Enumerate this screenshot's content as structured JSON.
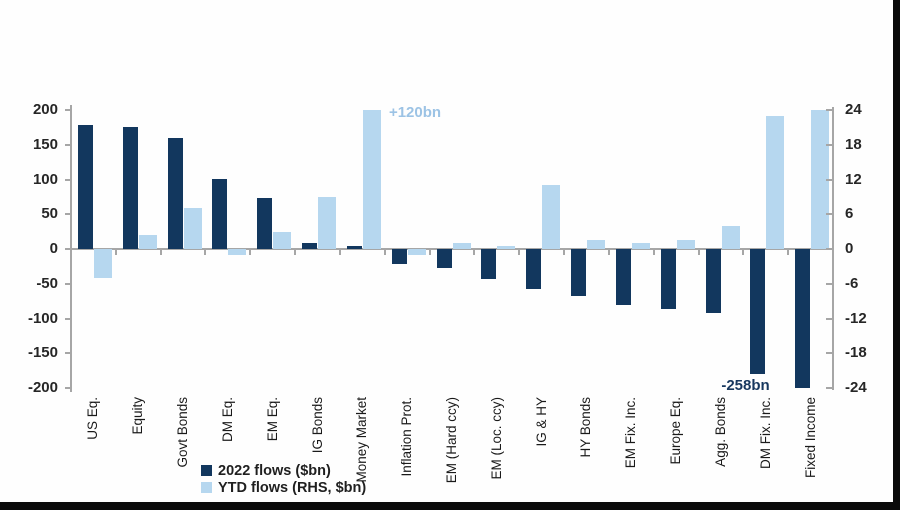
{
  "chart_data": {
    "type": "bar",
    "title": "",
    "categories": [
      "US Eq.",
      "Equity",
      "Govt Bonds",
      "DM Eq.",
      "EM Eq.",
      "IG Bonds",
      "Money Market",
      "Inflation Prot.",
      "EM (Hard ccy)",
      "EM (Loc. ccy)",
      "IG & HY",
      "HY Bonds",
      "EM Fix. Inc.",
      "Europe Eq.",
      "Agg. Bonds",
      "DM Fix. Inc.",
      "Fixed Income"
    ],
    "series": [
      {
        "name": "2022 flows ($bn)",
        "axis": "left",
        "color": "#12375e",
        "values": [
          178,
          176,
          160,
          101,
          73,
          8,
          5,
          -22,
          -28,
          -43,
          -58,
          -67,
          -81,
          -86,
          -92,
          -180,
          -200
        ]
      },
      {
        "name": "YTD flows (RHS, $bn)",
        "axis": "right",
        "color": "#b6d7ef",
        "values": [
          -5,
          2.5,
          7,
          -1,
          3,
          9,
          24,
          -1,
          1,
          0.5,
          11,
          1.5,
          1,
          1.5,
          4,
          23,
          24
        ]
      }
    ],
    "left_axis": {
      "ticks": [
        200,
        150,
        100,
        50,
        0,
        -50,
        -100,
        -150,
        -200
      ],
      "range": [
        -200,
        200
      ]
    },
    "right_axis": {
      "ticks": [
        24,
        18,
        12,
        6,
        0,
        -6,
        -12,
        -18,
        -24
      ],
      "range": [
        -24,
        24
      ]
    },
    "annotations": [
      {
        "text": "+120bn",
        "category_index": 6,
        "series": "YTD flows (RHS, $bn)",
        "placement": "right-of-bar-top",
        "color": "#9cc3e5"
      },
      {
        "text": "-258bn",
        "category_index": 15,
        "series": "2022 flows ($bn)",
        "placement": "below-bar",
        "color": "#17375e"
      }
    ],
    "legend": {
      "position": "inside-bottom-left",
      "items": [
        {
          "label": "2022 flows ($bn)",
          "color": "#12375e"
        },
        {
          "label": "YTD flows (RHS, $bn)",
          "color": "#b6d7ef"
        }
      ]
    },
    "grid": false,
    "notes": "Money Market YTD bar and Fixed Income bars are clipped at the axis limits"
  }
}
